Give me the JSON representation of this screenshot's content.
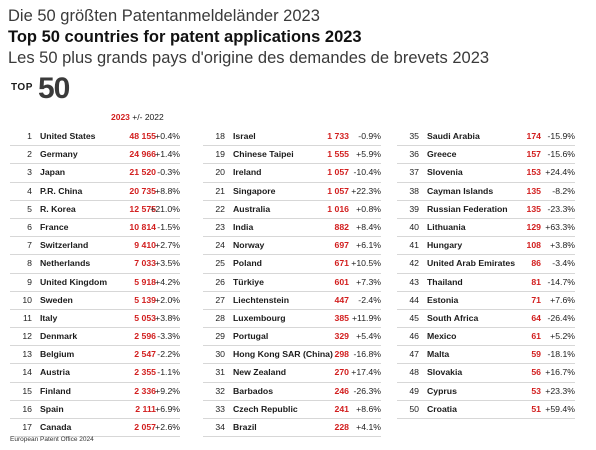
{
  "title_de": "Die 50 größten Patentanmeldeländer 2023",
  "title_en": "Top 50 countries for patent applications 2023",
  "title_fr": "Les 50 plus grands pays d'origine des demandes de brevets 2023",
  "badge": {
    "top": "TOP",
    "num": "50"
  },
  "header": {
    "year": "2023",
    "change": "+/- 2022"
  },
  "colors": {
    "accent": "#d21e1e",
    "text": "#1b1b1b",
    "rule": "#d7d7d7"
  },
  "columns": [
    [
      {
        "rank": "1",
        "country": "United States",
        "value": "48 155",
        "change": "+0.4%"
      },
      {
        "rank": "2",
        "country": "Germany",
        "value": "24 966",
        "change": "+1.4%"
      },
      {
        "rank": "3",
        "country": "Japan",
        "value": "21 520",
        "change": "-0.3%"
      },
      {
        "rank": "4",
        "country": "P.R. China",
        "value": "20 735",
        "change": "+8.8%"
      },
      {
        "rank": "5",
        "country": "R. Korea",
        "value": "12 575",
        "change": "+21.0%"
      },
      {
        "rank": "6",
        "country": "France",
        "value": "10 814",
        "change": "-1.5%"
      },
      {
        "rank": "7",
        "country": "Switzerland",
        "value": "9 410",
        "change": "+2.7%"
      },
      {
        "rank": "8",
        "country": "Netherlands",
        "value": "7 033",
        "change": "+3.5%"
      },
      {
        "rank": "9",
        "country": "United Kingdom",
        "value": "5 918",
        "change": "+4.2%"
      },
      {
        "rank": "10",
        "country": "Sweden",
        "value": "5 139",
        "change": "+2.0%"
      },
      {
        "rank": "11",
        "country": "Italy",
        "value": "5 053",
        "change": "+3.8%"
      },
      {
        "rank": "12",
        "country": "Denmark",
        "value": "2 596",
        "change": "-3.3%"
      },
      {
        "rank": "13",
        "country": "Belgium",
        "value": "2 547",
        "change": "-2.2%"
      },
      {
        "rank": "14",
        "country": "Austria",
        "value": "2 355",
        "change": "-1.1%"
      },
      {
        "rank": "15",
        "country": "Finland",
        "value": "2 336",
        "change": "+9.2%"
      },
      {
        "rank": "16",
        "country": "Spain",
        "value": "2 111",
        "change": "+6.9%"
      },
      {
        "rank": "17",
        "country": "Canada",
        "value": "2 057",
        "change": "+2.6%"
      }
    ],
    [
      {
        "rank": "18",
        "country": "Israel",
        "value": "1 733",
        "change": "-0.9%"
      },
      {
        "rank": "19",
        "country": "Chinese Taipei",
        "value": "1 555",
        "change": "+5.9%"
      },
      {
        "rank": "20",
        "country": "Ireland",
        "value": "1 057",
        "change": "-10.4%"
      },
      {
        "rank": "21",
        "country": "Singapore",
        "value": "1 057",
        "change": "+22.3%"
      },
      {
        "rank": "22",
        "country": "Australia",
        "value": "1 016",
        "change": "+0.8%"
      },
      {
        "rank": "23",
        "country": "India",
        "value": "882",
        "change": "+8.4%"
      },
      {
        "rank": "24",
        "country": "Norway",
        "value": "697",
        "change": "+6.1%"
      },
      {
        "rank": "25",
        "country": "Poland",
        "value": "671",
        "change": "+10.5%"
      },
      {
        "rank": "26",
        "country": "Türkiye",
        "value": "601",
        "change": "+7.3%"
      },
      {
        "rank": "27",
        "country": "Liechtenstein",
        "value": "447",
        "change": "-2.4%"
      },
      {
        "rank": "28",
        "country": "Luxembourg",
        "value": "385",
        "change": "+11.9%"
      },
      {
        "rank": "29",
        "country": "Portugal",
        "value": "329",
        "change": "+5.4%"
      },
      {
        "rank": "30",
        "country": "Hong Kong SAR (China)",
        "value": "298",
        "change": "-16.8%"
      },
      {
        "rank": "31",
        "country": "New Zealand",
        "value": "270",
        "change": "+17.4%"
      },
      {
        "rank": "32",
        "country": "Barbados",
        "value": "246",
        "change": "-26.3%"
      },
      {
        "rank": "33",
        "country": "Czech Republic",
        "value": "241",
        "change": "+8.6%"
      },
      {
        "rank": "34",
        "country": "Brazil",
        "value": "228",
        "change": "+4.1%"
      }
    ],
    [
      {
        "rank": "35",
        "country": "Saudi Arabia",
        "value": "174",
        "change": "-15.9%"
      },
      {
        "rank": "36",
        "country": "Greece",
        "value": "157",
        "change": "-15.6%"
      },
      {
        "rank": "37",
        "country": "Slovenia",
        "value": "153",
        "change": "+24.4%"
      },
      {
        "rank": "38",
        "country": "Cayman Islands",
        "value": "135",
        "change": "-8.2%"
      },
      {
        "rank": "39",
        "country": "Russian Federation",
        "value": "135",
        "change": "-23.3%"
      },
      {
        "rank": "40",
        "country": "Lithuania",
        "value": "129",
        "change": "+63.3%"
      },
      {
        "rank": "41",
        "country": "Hungary",
        "value": "108",
        "change": "+3.8%"
      },
      {
        "rank": "42",
        "country": "United Arab Emirates",
        "value": "86",
        "change": "-3.4%"
      },
      {
        "rank": "43",
        "country": "Thailand",
        "value": "81",
        "change": "-14.7%"
      },
      {
        "rank": "44",
        "country": "Estonia",
        "value": "71",
        "change": "+7.6%"
      },
      {
        "rank": "45",
        "country": "South Africa",
        "value": "64",
        "change": "-26.4%"
      },
      {
        "rank": "46",
        "country": "Mexico",
        "value": "61",
        "change": "+5.2%"
      },
      {
        "rank": "47",
        "country": "Malta",
        "value": "59",
        "change": "-18.1%"
      },
      {
        "rank": "48",
        "country": "Slovakia",
        "value": "56",
        "change": "+16.7%"
      },
      {
        "rank": "49",
        "country": "Cyprus",
        "value": "53",
        "change": "+23.3%"
      },
      {
        "rank": "50",
        "country": "Croatia",
        "value": "51",
        "change": "+59.4%"
      }
    ]
  ],
  "footer": "European Patent Office 2024"
}
